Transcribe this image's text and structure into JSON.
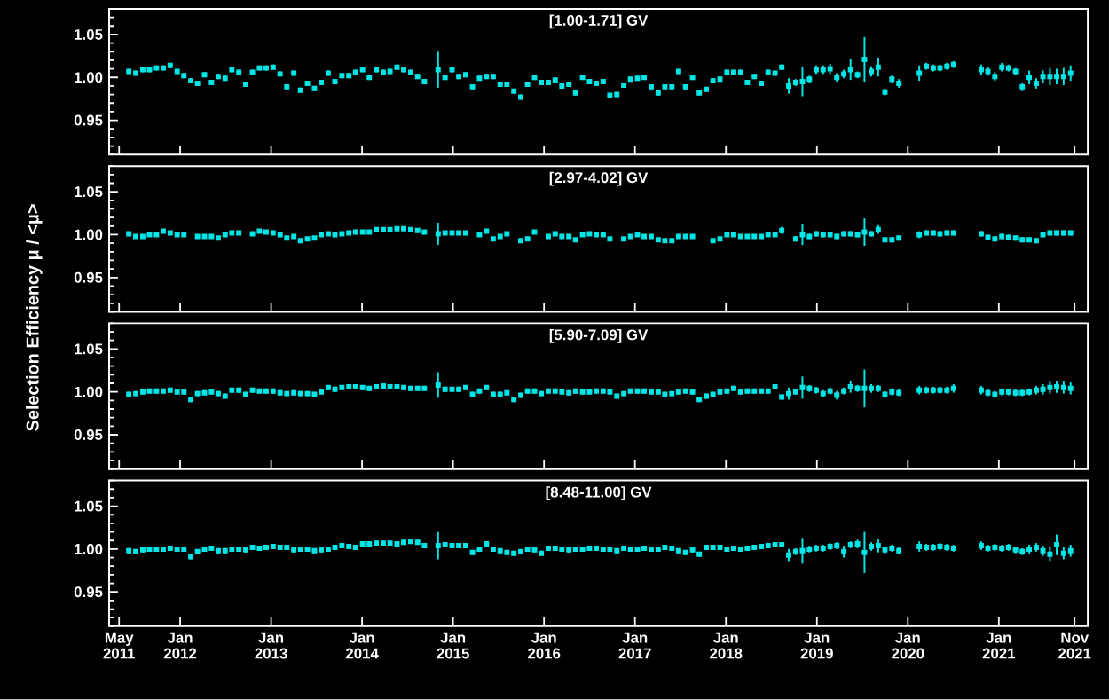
{
  "chart_data": [
    {
      "type": "scatter",
      "title": "[1.00-1.71] GV",
      "color": "#00e5e5",
      "marker": "square",
      "tick_labels": "y",
      "xlim": [
        "2011-03-22",
        "2021-12-24"
      ],
      "ylim": [
        0.91,
        1.08
      ],
      "yticks": [
        {
          "value": 0.91,
          "label": null
        },
        {
          "value": 0.92,
          "label": null
        },
        {
          "value": 0.93,
          "label": null
        },
        {
          "value": 0.94,
          "label": null
        },
        {
          "value": 0.95,
          "label": "0.95"
        },
        {
          "value": 0.96,
          "label": null
        },
        {
          "value": 0.97,
          "label": null
        },
        {
          "value": 0.98,
          "label": null
        },
        {
          "value": 0.99,
          "label": null
        },
        {
          "value": 1,
          "label": "1.00"
        },
        {
          "value": 1.01,
          "label": null
        },
        {
          "value": 1.02,
          "label": null
        },
        {
          "value": 1.03,
          "label": null
        },
        {
          "value": 1.04,
          "label": null
        },
        {
          "value": 1.05,
          "label": "1.05"
        },
        {
          "value": 1.06,
          "label": null
        },
        {
          "value": 1.07,
          "label": null
        },
        {
          "value": 1.08,
          "label": null
        }
      ],
      "xticks": [
        {
          "value": "2011-05",
          "label": null
        },
        {
          "value": "2012-01",
          "label": null
        },
        {
          "value": "2013-01",
          "label": null
        },
        {
          "value": "2014-01",
          "label": null
        },
        {
          "value": "2015-01",
          "label": null
        },
        {
          "value": "2016-01",
          "label": null
        },
        {
          "value": "2017-01",
          "label": null
        },
        {
          "value": "2018-01",
          "label": null
        },
        {
          "value": "2019-01",
          "label": null
        },
        {
          "value": "2020-01",
          "label": null
        },
        {
          "value": "2021-01",
          "label": null
        },
        {
          "value": "2021-11",
          "label": null
        }
      ],
      "x": [
        "2011-06-09",
        "2011-07-07",
        "2011-08-04",
        "2011-08-31",
        "2011-09-28",
        "2011-10-25",
        "2011-11-22",
        "2011-12-20",
        "2012-01-16",
        "2012-02-13",
        "2012-03-11",
        "2012-04-08",
        "2012-05-06",
        "2012-06-02",
        "2012-06-30",
        "2012-07-27",
        "2012-08-24",
        "2012-09-21",
        "2012-10-18",
        "2012-11-15",
        "2012-12-12",
        "2013-01-09",
        "2013-02-06",
        "2013-03-05",
        "2013-04-02",
        "2013-04-29",
        "2013-05-27",
        "2013-06-24",
        "2013-07-21",
        "2013-08-18",
        "2013-09-14",
        "2013-10-12",
        "2013-11-09",
        "2013-12-06",
        "2014-01-03",
        "2014-01-30",
        "2014-02-27",
        "2014-03-27",
        "2014-04-23",
        "2014-05-21",
        "2014-06-17",
        "2014-07-15",
        "2014-08-12",
        "2014-09-08",
        "2014-10-06",
        "2014-11-02",
        "2014-11-30",
        "2014-12-28",
        "2015-01-24",
        "2015-02-21",
        "2015-03-20",
        "2015-04-17",
        "2015-05-15",
        "2015-06-11",
        "2015-07-09",
        "2015-08-05",
        "2015-09-02",
        "2015-09-30",
        "2015-10-27",
        "2015-11-24",
        "2015-12-21",
        "2016-01-18",
        "2016-02-15",
        "2016-03-13",
        "2016-04-10",
        "2016-05-07",
        "2016-06-04",
        "2016-07-02",
        "2016-07-29",
        "2016-08-26",
        "2016-09-22",
        "2016-10-20",
        "2016-11-17",
        "2016-12-14",
        "2017-01-11",
        "2017-02-07",
        "2017-03-07",
        "2017-04-04",
        "2017-05-01",
        "2017-05-29",
        "2017-06-25",
        "2017-07-23",
        "2017-08-20",
        "2017-09-16",
        "2017-10-14",
        "2017-11-10",
        "2017-12-08",
        "2018-01-05",
        "2018-02-01",
        "2018-03-01",
        "2018-03-28",
        "2018-04-25",
        "2018-05-23",
        "2018-06-19",
        "2018-07-17",
        "2018-08-13",
        "2018-09-10",
        "2018-10-08",
        "2018-11-04",
        "2018-12-02",
        "2018-12-29",
        "2019-01-26",
        "2019-02-23",
        "2019-03-22",
        "2019-04-19",
        "2019-05-16",
        "2019-06-13",
        "2019-07-11",
        "2019-08-07",
        "2019-09-04",
        "2019-10-01",
        "2019-10-29",
        "2019-11-26",
        "2019-12-23",
        "2020-01-20",
        "2020-02-16",
        "2020-03-15",
        "2020-04-12",
        "2020-05-09",
        "2020-06-06",
        "2020-07-03",
        "2020-07-31",
        "2020-08-28",
        "2020-09-24",
        "2020-10-22",
        "2020-11-18",
        "2020-12-16",
        "2021-01-13",
        "2021-02-09",
        "2021-03-09",
        "2021-04-05",
        "2021-05-03",
        "2021-05-31",
        "2021-06-27",
        "2021-07-25",
        "2021-08-21",
        "2021-09-18",
        "2021-10-16"
      ],
      "values": [
        1.007,
        1.005,
        1.009,
        1.009,
        1.011,
        1.011,
        1.014,
        1.007,
        1.002,
        0.996,
        0.993,
        1.003,
        0.994,
        1.001,
        0.999,
        1.009,
        1.006,
        0.992,
        1.006,
        1.011,
        1.011,
        1.012,
        1.004,
        0.989,
        1.005,
        0.985,
        0.993,
        0.987,
        0.994,
        1.005,
        0.995,
        1.002,
        1.002,
        1.006,
        1.009,
        1.0,
        1.009,
        1.006,
        1.007,
        1.012,
        1.009,
        1.006,
        1.001,
        0.995,
        null,
        1.009,
        1.0,
        1.009,
        1.001,
        1.003,
        0.989,
        0.999,
        1.001,
        1.001,
        0.992,
        0.992,
        0.984,
        0.977,
        0.992,
        1.0,
        0.994,
        0.994,
        0.997,
        0.99,
        0.992,
        0.982,
        1.0,
        0.995,
        0.993,
        0.995,
        0.979,
        0.98,
        0.991,
        0.998,
        0.999,
        1.0,
        0.989,
        0.982,
        0.989,
        0.989,
        1.007,
        0.989,
        1.0,
        0.982,
        0.986,
        0.996,
        0.998,
        1.006,
        1.006,
        1.006,
        0.994,
        1.001,
        0.993,
        1.006,
        1.005,
        1.012,
        0.99,
        0.994,
        0.995,
        0.998,
        1.009,
        1.009,
        1.01,
        1.0,
        1.004,
        1.009,
        1.003,
        1.021,
        1.007,
        1.012,
        0.983,
        0.998,
        0.993,
        null,
        null,
        1.005,
        1.013,
        1.011,
        1.011,
        1.013,
        1.015,
        null,
        null,
        null,
        1.009,
        1.007,
        1.001,
        1.012,
        1.011,
        1.007,
        0.989,
        1.0,
        0.993,
        1.001,
        1.001,
        1.001,
        1.001,
        1.005
      ],
      "errors": [
        0.003,
        0.003,
        0.003,
        0.003,
        0.003,
        0.003,
        0.003,
        0.003,
        0.003,
        0.003,
        0.003,
        0.003,
        0.003,
        0.003,
        0.003,
        0.003,
        0.003,
        0.003,
        0.003,
        0.003,
        0.003,
        0.003,
        0.003,
        0.003,
        0.003,
        0.003,
        0.003,
        0.003,
        0.003,
        0.003,
        0.003,
        0.003,
        0.003,
        0.003,
        0.003,
        0.003,
        0.003,
        0.003,
        0.003,
        0.003,
        0.003,
        0.003,
        0.003,
        0.003,
        null,
        0.021,
        0.003,
        0.003,
        0.003,
        0.003,
        0.003,
        0.003,
        0.003,
        0.003,
        0.003,
        0.003,
        0.003,
        0.003,
        0.003,
        0.003,
        0.003,
        0.003,
        0.003,
        0.003,
        0.003,
        0.003,
        0.003,
        0.003,
        0.003,
        0.003,
        0.003,
        0.003,
        0.003,
        0.003,
        0.003,
        0.003,
        0.003,
        0.003,
        0.003,
        0.003,
        0.003,
        0.003,
        0.003,
        0.003,
        0.003,
        0.003,
        0.003,
        0.003,
        0.003,
        0.003,
        0.003,
        0.003,
        0.003,
        0.003,
        0.003,
        0.003,
        0.009,
        0.004,
        0.017,
        0.004,
        0.005,
        0.005,
        0.006,
        0.005,
        0.005,
        0.012,
        0.004,
        0.026,
        0.006,
        0.011,
        0.004,
        0.004,
        0.005,
        null,
        null,
        0.009,
        0.004,
        0.004,
        0.004,
        0.004,
        0.004,
        null,
        null,
        null,
        0.006,
        0.005,
        0.005,
        0.005,
        0.004,
        0.004,
        0.005,
        0.008,
        0.006,
        0.007,
        0.01,
        0.009,
        0.01,
        0.009
      ]
    },
    {
      "type": "scatter",
      "title": "[2.97-4.02] GV",
      "ylabel": "Selection Efficiency μ / <μ>",
      "color": "#00e5e5",
      "marker": "square",
      "tick_labels": "y",
      "xlim": [
        "2011-03-22",
        "2021-12-24"
      ],
      "ylim": [
        0.91,
        1.08
      ],
      "yticks": [
        {
          "value": 0.91,
          "label": null
        },
        {
          "value": 0.92,
          "label": null
        },
        {
          "value": 0.93,
          "label": null
        },
        {
          "value": 0.94,
          "label": null
        },
        {
          "value": 0.95,
          "label": "0.95"
        },
        {
          "value": 0.96,
          "label": null
        },
        {
          "value": 0.97,
          "label": null
        },
        {
          "value": 0.98,
          "label": null
        },
        {
          "value": 0.99,
          "label": null
        },
        {
          "value": 1,
          "label": "1.00"
        },
        {
          "value": 1.01,
          "label": null
        },
        {
          "value": 1.02,
          "label": null
        },
        {
          "value": 1.03,
          "label": null
        },
        {
          "value": 1.04,
          "label": null
        },
        {
          "value": 1.05,
          "label": "1.05"
        },
        {
          "value": 1.06,
          "label": null
        },
        {
          "value": 1.07,
          "label": null
        },
        {
          "value": 1.08,
          "label": null
        }
      ],
      "xticks": [
        {
          "value": "2011-05",
          "label": null
        },
        {
          "value": "2012-01",
          "label": null
        },
        {
          "value": "2013-01",
          "label": null
        },
        {
          "value": "2014-01",
          "label": null
        },
        {
          "value": "2015-01",
          "label": null
        },
        {
          "value": "2016-01",
          "label": null
        },
        {
          "value": "2017-01",
          "label": null
        },
        {
          "value": "2018-01",
          "label": null
        },
        {
          "value": "2019-01",
          "label": null
        },
        {
          "value": "2020-01",
          "label": null
        },
        {
          "value": "2021-01",
          "label": null
        },
        {
          "value": "2021-11",
          "label": null
        }
      ],
      "x": [
        "2011-06-09",
        "2011-07-07",
        "2011-08-04",
        "2011-08-31",
        "2011-09-28",
        "2011-10-25",
        "2011-11-22",
        "2011-12-20",
        "2012-01-16",
        "2012-02-13",
        "2012-03-11",
        "2012-04-08",
        "2012-05-06",
        "2012-06-02",
        "2012-06-30",
        "2012-07-27",
        "2012-08-24",
        "2012-09-21",
        "2012-10-18",
        "2012-11-15",
        "2012-12-12",
        "2013-01-09",
        "2013-02-06",
        "2013-03-05",
        "2013-04-02",
        "2013-04-29",
        "2013-05-27",
        "2013-06-24",
        "2013-07-21",
        "2013-08-18",
        "2013-09-14",
        "2013-10-12",
        "2013-11-09",
        "2013-12-06",
        "2014-01-03",
        "2014-01-30",
        "2014-02-27",
        "2014-03-27",
        "2014-04-23",
        "2014-05-21",
        "2014-06-17",
        "2014-07-15",
        "2014-08-12",
        "2014-09-08",
        "2014-10-06",
        "2014-11-02",
        "2014-11-30",
        "2014-12-28",
        "2015-01-24",
        "2015-02-21",
        "2015-03-20",
        "2015-04-17",
        "2015-05-15",
        "2015-06-11",
        "2015-07-09",
        "2015-08-05",
        "2015-09-02",
        "2015-09-30",
        "2015-10-27",
        "2015-11-24",
        "2015-12-21",
        "2016-01-18",
        "2016-02-15",
        "2016-03-13",
        "2016-04-10",
        "2016-05-07",
        "2016-06-04",
        "2016-07-02",
        "2016-07-29",
        "2016-08-26",
        "2016-09-22",
        "2016-10-20",
        "2016-11-17",
        "2016-12-14",
        "2017-01-11",
        "2017-02-07",
        "2017-03-07",
        "2017-04-04",
        "2017-05-01",
        "2017-05-29",
        "2017-06-25",
        "2017-07-23",
        "2017-08-20",
        "2017-09-16",
        "2017-10-14",
        "2017-11-10",
        "2017-12-08",
        "2018-01-05",
        "2018-02-01",
        "2018-03-01",
        "2018-03-28",
        "2018-04-25",
        "2018-05-23",
        "2018-06-19",
        "2018-07-17",
        "2018-08-13",
        "2018-09-10",
        "2018-10-08",
        "2018-11-04",
        "2018-12-02",
        "2018-12-29",
        "2019-01-26",
        "2019-02-23",
        "2019-03-22",
        "2019-04-19",
        "2019-05-16",
        "2019-06-13",
        "2019-07-11",
        "2019-08-07",
        "2019-09-04",
        "2019-10-01",
        "2019-10-29",
        "2019-11-26",
        "2019-12-23",
        "2020-01-20",
        "2020-02-16",
        "2020-03-15",
        "2020-04-12",
        "2020-05-09",
        "2020-06-06",
        "2020-07-03",
        "2020-07-31",
        "2020-08-28",
        "2020-09-24",
        "2020-10-22",
        "2020-11-18",
        "2020-12-16",
        "2021-01-13",
        "2021-02-09",
        "2021-03-09",
        "2021-04-05",
        "2021-05-03",
        "2021-05-31",
        "2021-06-27",
        "2021-07-25",
        "2021-08-21",
        "2021-09-18",
        "2021-10-16"
      ],
      "values": [
        1.001,
        0.998,
        0.998,
        1.0,
        1.0,
        1.004,
        1.002,
        1.0,
        1.0,
        null,
        0.998,
        0.998,
        0.998,
        0.996,
        1.0,
        1.002,
        1.002,
        null,
        1.001,
        1.004,
        1.003,
        1.002,
        1.0,
        0.996,
        0.998,
        0.993,
        0.995,
        0.996,
        1.0,
        1.001,
        1.0,
        1.001,
        1.002,
        1.003,
        1.003,
        1.003,
        1.006,
        1.006,
        1.006,
        1.007,
        1.007,
        1.006,
        1.005,
        1.003,
        null,
        1.001,
        1.002,
        1.002,
        1.002,
        1.002,
        null,
        1.0,
        1.004,
        0.995,
        0.998,
        1.001,
        null,
        0.993,
        0.995,
        1.003,
        null,
        0.998,
        1.001,
        0.998,
        0.998,
        0.994,
        1.0,
        1.001,
        1.0,
        1.0,
        0.995,
        null,
        0.995,
        0.998,
        1.0,
        0.998,
        0.998,
        0.994,
        0.993,
        0.993,
        0.998,
        0.998,
        0.998,
        null,
        null,
        0.993,
        0.995,
        1.0,
        1.0,
        0.998,
        0.998,
        0.998,
        0.998,
        1.0,
        1.0,
        1.005,
        null,
        0.995,
        1.0,
        0.998,
        1.001,
        1.0,
        1.0,
        0.998,
        1.001,
        1.001,
        1.0,
        1.003,
        1.001,
        1.006,
        0.994,
        0.994,
        0.996,
        null,
        null,
        1.0,
        1.002,
        1.002,
        1.001,
        1.002,
        1.002,
        null,
        null,
        null,
        1.001,
        0.997,
        0.995,
        0.998,
        0.997,
        0.996,
        0.994,
        0.994,
        0.993,
        1.0,
        1.002,
        1.002,
        1.002,
        1.002
      ],
      "errors": [
        0.002,
        0.002,
        0.002,
        0.002,
        0.002,
        0.002,
        0.002,
        0.002,
        0.002,
        null,
        0.002,
        0.002,
        0.002,
        0.002,
        0.002,
        0.002,
        0.002,
        null,
        0.002,
        0.002,
        0.002,
        0.002,
        0.002,
        0.002,
        0.002,
        0.002,
        0.002,
        0.002,
        0.002,
        0.002,
        0.002,
        0.002,
        0.002,
        0.002,
        0.002,
        0.002,
        0.002,
        0.002,
        0.002,
        0.002,
        0.002,
        0.002,
        0.002,
        0.002,
        null,
        0.013,
        0.002,
        0.002,
        0.002,
        0.002,
        null,
        0.002,
        0.002,
        0.002,
        0.002,
        0.002,
        null,
        0.002,
        0.002,
        0.002,
        null,
        0.002,
        0.002,
        0.002,
        0.002,
        0.002,
        0.002,
        0.002,
        0.002,
        0.002,
        0.002,
        null,
        0.002,
        0.002,
        0.002,
        0.002,
        0.002,
        0.002,
        0.002,
        0.002,
        0.002,
        0.002,
        0.002,
        null,
        null,
        0.002,
        0.002,
        0.002,
        0.002,
        0.002,
        0.002,
        0.002,
        0.002,
        0.002,
        0.002,
        0.004,
        null,
        0.003,
        0.012,
        0.003,
        0.003,
        0.003,
        0.003,
        0.003,
        0.003,
        0.003,
        0.003,
        0.016,
        0.003,
        0.005,
        0.003,
        0.003,
        0.003,
        null,
        null,
        0.004,
        0.003,
        0.003,
        0.003,
        0.003,
        0.003,
        null,
        null,
        null,
        0.003,
        0.003,
        0.003,
        0.003,
        0.003,
        0.003,
        0.003,
        0.003,
        0.003,
        0.003,
        0.003,
        0.003,
        0.003,
        0.003
      ]
    },
    {
      "type": "scatter",
      "title": "[5.90-7.09] GV",
      "color": "#00e5e5",
      "marker": "square",
      "tick_labels": "y",
      "xlim": [
        "2011-03-22",
        "2021-12-24"
      ],
      "ylim": [
        0.91,
        1.08
      ],
      "yticks": [
        {
          "value": 0.91,
          "label": null
        },
        {
          "value": 0.92,
          "label": null
        },
        {
          "value": 0.93,
          "label": null
        },
        {
          "value": 0.94,
          "label": null
        },
        {
          "value": 0.95,
          "label": "0.95"
        },
        {
          "value": 0.96,
          "label": null
        },
        {
          "value": 0.97,
          "label": null
        },
        {
          "value": 0.98,
          "label": null
        },
        {
          "value": 0.99,
          "label": null
        },
        {
          "value": 1,
          "label": "1.00"
        },
        {
          "value": 1.01,
          "label": null
        },
        {
          "value": 1.02,
          "label": null
        },
        {
          "value": 1.03,
          "label": null
        },
        {
          "value": 1.04,
          "label": null
        },
        {
          "value": 1.05,
          "label": "1.05"
        },
        {
          "value": 1.06,
          "label": null
        },
        {
          "value": 1.07,
          "label": null
        },
        {
          "value": 1.08,
          "label": null
        }
      ],
      "xticks": [
        {
          "value": "2011-05",
          "label": null
        },
        {
          "value": "2012-01",
          "label": null
        },
        {
          "value": "2013-01",
          "label": null
        },
        {
          "value": "2014-01",
          "label": null
        },
        {
          "value": "2015-01",
          "label": null
        },
        {
          "value": "2016-01",
          "label": null
        },
        {
          "value": "2017-01",
          "label": null
        },
        {
          "value": "2018-01",
          "label": null
        },
        {
          "value": "2019-01",
          "label": null
        },
        {
          "value": "2020-01",
          "label": null
        },
        {
          "value": "2021-01",
          "label": null
        },
        {
          "value": "2021-11",
          "label": null
        }
      ],
      "x": [
        "2011-06-09",
        "2011-07-07",
        "2011-08-04",
        "2011-08-31",
        "2011-09-28",
        "2011-10-25",
        "2011-11-22",
        "2011-12-20",
        "2012-01-16",
        "2012-02-13",
        "2012-03-11",
        "2012-04-08",
        "2012-05-06",
        "2012-06-02",
        "2012-06-30",
        "2012-07-27",
        "2012-08-24",
        "2012-09-21",
        "2012-10-18",
        "2012-11-15",
        "2012-12-12",
        "2013-01-09",
        "2013-02-06",
        "2013-03-05",
        "2013-04-02",
        "2013-04-29",
        "2013-05-27",
        "2013-06-24",
        "2013-07-21",
        "2013-08-18",
        "2013-09-14",
        "2013-10-12",
        "2013-11-09",
        "2013-12-06",
        "2014-01-03",
        "2014-01-30",
        "2014-02-27",
        "2014-03-27",
        "2014-04-23",
        "2014-05-21",
        "2014-06-17",
        "2014-07-15",
        "2014-08-12",
        "2014-09-08",
        "2014-10-06",
        "2014-11-02",
        "2014-11-30",
        "2014-12-28",
        "2015-01-24",
        "2015-02-21",
        "2015-03-20",
        "2015-04-17",
        "2015-05-15",
        "2015-06-11",
        "2015-07-09",
        "2015-08-05",
        "2015-09-02",
        "2015-09-30",
        "2015-10-27",
        "2015-11-24",
        "2015-12-21",
        "2016-01-18",
        "2016-02-15",
        "2016-03-13",
        "2016-04-10",
        "2016-05-07",
        "2016-06-04",
        "2016-07-02",
        "2016-07-29",
        "2016-08-26",
        "2016-09-22",
        "2016-10-20",
        "2016-11-17",
        "2016-12-14",
        "2017-01-11",
        "2017-02-07",
        "2017-03-07",
        "2017-04-04",
        "2017-05-01",
        "2017-05-29",
        "2017-06-25",
        "2017-07-23",
        "2017-08-20",
        "2017-09-16",
        "2017-10-14",
        "2017-11-10",
        "2017-12-08",
        "2018-01-05",
        "2018-02-01",
        "2018-03-01",
        "2018-03-28",
        "2018-04-25",
        "2018-05-23",
        "2018-06-19",
        "2018-07-17",
        "2018-08-13",
        "2018-09-10",
        "2018-10-08",
        "2018-11-04",
        "2018-12-02",
        "2018-12-29",
        "2019-01-26",
        "2019-02-23",
        "2019-03-22",
        "2019-04-19",
        "2019-05-16",
        "2019-06-13",
        "2019-07-11",
        "2019-08-07",
        "2019-09-04",
        "2019-10-01",
        "2019-10-29",
        "2019-11-26",
        "2019-12-23",
        "2020-01-20",
        "2020-02-16",
        "2020-03-15",
        "2020-04-12",
        "2020-05-09",
        "2020-06-06",
        "2020-07-03",
        "2020-07-31",
        "2020-08-28",
        "2020-09-24",
        "2020-10-22",
        "2020-11-18",
        "2020-12-16",
        "2021-01-13",
        "2021-02-09",
        "2021-03-09",
        "2021-04-05",
        "2021-05-03",
        "2021-05-31",
        "2021-06-27",
        "2021-07-25",
        "2021-08-21",
        "2021-09-18",
        "2021-10-16"
      ],
      "values": [
        0.997,
        0.998,
        1.0,
        1.001,
        1.001,
        1.001,
        1.002,
        1.0,
        1.0,
        0.991,
        0.998,
        0.999,
        1.0,
        0.998,
        0.995,
        1.002,
        1.002,
        0.997,
        1.002,
        1.001,
        1.001,
        1.001,
        0.999,
        0.998,
        0.999,
        0.998,
        0.998,
        0.997,
        1.0,
        1.005,
        1.003,
        1.005,
        1.006,
        1.006,
        1.005,
        1.004,
        1.006,
        1.007,
        1.006,
        1.006,
        1.005,
        1.004,
        1.004,
        1.004,
        null,
        1.008,
        1.003,
        1.003,
        1.003,
        1.005,
        0.997,
        1.001,
        1.005,
        0.997,
        0.997,
        0.999,
        0.991,
        0.996,
        1.001,
        1.001,
        0.998,
        1.001,
        1.001,
        1.0,
        0.999,
        1.001,
        1.0,
        1.0,
        1.001,
        1.001,
        1.0,
        0.995,
        0.998,
        1.001,
        1.001,
        1.001,
        1.0,
        1.0,
        0.997,
        0.998,
        1.0,
        1.001,
        1.0,
        0.991,
        0.995,
        0.997,
        1.0,
        1.001,
        1.004,
        1.0,
        1.001,
        1.001,
        1.001,
        1.001,
        1.006,
        0.994,
        0.998,
        1.0,
        1.005,
        1.004,
        1.002,
        0.998,
        1.001,
        0.996,
        1.001,
        1.006,
        1.004,
        1.004,
        1.004,
        1.004,
        0.997,
        1.0,
        0.999,
        null,
        null,
        1.002,
        1.002,
        1.002,
        1.002,
        1.002,
        1.004,
        null,
        null,
        null,
        1.002,
        0.999,
        0.997,
        1.0,
        1.0,
        0.999,
        0.999,
        1.0,
        1.002,
        1.003,
        1.005,
        1.006,
        1.005,
        1.004
      ],
      "errors": [
        0.003,
        0.003,
        0.003,
        0.003,
        0.003,
        0.003,
        0.003,
        0.003,
        0.003,
        0.003,
        0.003,
        0.003,
        0.003,
        0.003,
        0.003,
        0.003,
        0.003,
        0.003,
        0.003,
        0.003,
        0.003,
        0.003,
        0.003,
        0.003,
        0.003,
        0.003,
        0.003,
        0.003,
        0.003,
        0.003,
        0.003,
        0.003,
        0.003,
        0.003,
        0.003,
        0.003,
        0.003,
        0.003,
        0.003,
        0.003,
        0.003,
        0.003,
        0.003,
        0.003,
        null,
        0.015,
        0.003,
        0.003,
        0.003,
        0.003,
        0.003,
        0.003,
        0.003,
        0.003,
        0.003,
        0.003,
        0.003,
        0.003,
        0.003,
        0.003,
        0.003,
        0.003,
        0.003,
        0.003,
        0.003,
        0.003,
        0.003,
        0.003,
        0.003,
        0.003,
        0.003,
        0.003,
        0.003,
        0.003,
        0.003,
        0.003,
        0.003,
        0.003,
        0.003,
        0.003,
        0.003,
        0.003,
        0.003,
        0.003,
        0.003,
        0.003,
        0.003,
        0.003,
        0.003,
        0.003,
        0.003,
        0.003,
        0.003,
        0.003,
        0.003,
        0.003,
        0.007,
        0.003,
        0.013,
        0.004,
        0.004,
        0.004,
        0.004,
        0.005,
        0.004,
        0.007,
        0.004,
        0.022,
        0.005,
        0.004,
        0.004,
        0.004,
        0.004,
        null,
        null,
        0.005,
        0.004,
        0.004,
        0.004,
        0.004,
        0.005,
        null,
        null,
        null,
        0.005,
        0.004,
        0.004,
        0.004,
        0.004,
        0.004,
        0.004,
        0.004,
        0.005,
        0.006,
        0.007,
        0.007,
        0.007,
        0.007
      ]
    },
    {
      "type": "scatter",
      "title": "[8.48-11.00] GV",
      "color": "#00e5e5",
      "marker": "square",
      "xlim": [
        "2011-03-22",
        "2021-12-24"
      ],
      "ylim": [
        0.91,
        1.08
      ],
      "yticks": [
        {
          "value": 0.91,
          "label": null
        },
        {
          "value": 0.92,
          "label": null
        },
        {
          "value": 0.93,
          "label": null
        },
        {
          "value": 0.94,
          "label": null
        },
        {
          "value": 0.95,
          "label": "0.95"
        },
        {
          "value": 0.96,
          "label": null
        },
        {
          "value": 0.97,
          "label": null
        },
        {
          "value": 0.98,
          "label": null
        },
        {
          "value": 0.99,
          "label": null
        },
        {
          "value": 1,
          "label": "1.00"
        },
        {
          "value": 1.01,
          "label": null
        },
        {
          "value": 1.02,
          "label": null
        },
        {
          "value": 1.03,
          "label": null
        },
        {
          "value": 1.04,
          "label": null
        },
        {
          "value": 1.05,
          "label": "1.05"
        },
        {
          "value": 1.06,
          "label": null
        },
        {
          "value": 1.07,
          "label": null
        },
        {
          "value": 1.08,
          "label": null
        }
      ],
      "xticks": [
        {
          "value": "2011-05",
          "label": "May 2011"
        },
        {
          "value": "2012-01",
          "label": "Jan 2012"
        },
        {
          "value": "2013-01",
          "label": "Jan 2013"
        },
        {
          "value": "2014-01",
          "label": "Jan 2014"
        },
        {
          "value": "2015-01",
          "label": "Jan 2015"
        },
        {
          "value": "2016-01",
          "label": "Jan 2016"
        },
        {
          "value": "2017-01",
          "label": "Jan 2017"
        },
        {
          "value": "2018-01",
          "label": "Jan 2018"
        },
        {
          "value": "2019-01",
          "label": "Jan 2019"
        },
        {
          "value": "2020-01",
          "label": "Jan 2020"
        },
        {
          "value": "2021-01",
          "label": "Jan 2021"
        },
        {
          "value": "2021-11",
          "label": "Nov 2021"
        }
      ],
      "x": [
        "2011-06-09",
        "2011-07-07",
        "2011-08-04",
        "2011-08-31",
        "2011-09-28",
        "2011-10-25",
        "2011-11-22",
        "2011-12-20",
        "2012-01-16",
        "2012-02-13",
        "2012-03-11",
        "2012-04-08",
        "2012-05-06",
        "2012-06-02",
        "2012-06-30",
        "2012-07-27",
        "2012-08-24",
        "2012-09-21",
        "2012-10-18",
        "2012-11-15",
        "2012-12-12",
        "2013-01-09",
        "2013-02-06",
        "2013-03-05",
        "2013-04-02",
        "2013-04-29",
        "2013-05-27",
        "2013-06-24",
        "2013-07-21",
        "2013-08-18",
        "2013-09-14",
        "2013-10-12",
        "2013-11-09",
        "2013-12-06",
        "2014-01-03",
        "2014-01-30",
        "2014-02-27",
        "2014-03-27",
        "2014-04-23",
        "2014-05-21",
        "2014-06-17",
        "2014-07-15",
        "2014-08-12",
        "2014-09-08",
        "2014-10-06",
        "2014-11-02",
        "2014-11-30",
        "2014-12-28",
        "2015-01-24",
        "2015-02-21",
        "2015-03-20",
        "2015-04-17",
        "2015-05-15",
        "2015-06-11",
        "2015-07-09",
        "2015-08-05",
        "2015-09-02",
        "2015-09-30",
        "2015-10-27",
        "2015-11-24",
        "2015-12-21",
        "2016-01-18",
        "2016-02-15",
        "2016-03-13",
        "2016-04-10",
        "2016-05-07",
        "2016-06-04",
        "2016-07-02",
        "2016-07-29",
        "2016-08-26",
        "2016-09-22",
        "2016-10-20",
        "2016-11-17",
        "2016-12-14",
        "2017-01-11",
        "2017-02-07",
        "2017-03-07",
        "2017-04-04",
        "2017-05-01",
        "2017-05-29",
        "2017-06-25",
        "2017-07-23",
        "2017-08-20",
        "2017-09-16",
        "2017-10-14",
        "2017-11-10",
        "2017-12-08",
        "2018-01-05",
        "2018-02-01",
        "2018-03-01",
        "2018-03-28",
        "2018-04-25",
        "2018-05-23",
        "2018-06-19",
        "2018-07-17",
        "2018-08-13",
        "2018-09-10",
        "2018-10-08",
        "2018-11-04",
        "2018-12-02",
        "2018-12-29",
        "2019-01-26",
        "2019-02-23",
        "2019-03-22",
        "2019-04-19",
        "2019-05-16",
        "2019-06-13",
        "2019-07-11",
        "2019-08-07",
        "2019-09-04",
        "2019-10-01",
        "2019-10-29",
        "2019-11-26",
        "2019-12-23",
        "2020-01-20",
        "2020-02-16",
        "2020-03-15",
        "2020-04-12",
        "2020-05-09",
        "2020-06-06",
        "2020-07-03",
        "2020-07-31",
        "2020-08-28",
        "2020-09-24",
        "2020-10-22",
        "2020-11-18",
        "2020-12-16",
        "2021-01-13",
        "2021-02-09",
        "2021-03-09",
        "2021-04-05",
        "2021-05-03",
        "2021-05-31",
        "2021-06-27",
        "2021-07-25",
        "2021-08-21",
        "2021-09-18",
        "2021-10-16"
      ],
      "values": [
        0.998,
        0.997,
        0.999,
        1.0,
        1.0,
        1.0,
        1.001,
        1.0,
        1.0,
        0.991,
        0.997,
        1.0,
        1.001,
        0.998,
        0.998,
        1.0,
        1.0,
        0.999,
        1.002,
        1.001,
        1.002,
        1.003,
        1.002,
        1.002,
        0.999,
        1.0,
        1.0,
        0.998,
        0.999,
        1.0,
        1.002,
        1.004,
        1.003,
        1.002,
        1.006,
        1.006,
        1.007,
        1.007,
        1.007,
        1.006,
        1.008,
        1.009,
        1.008,
        1.004,
        null,
        1.004,
        1.005,
        1.004,
        1.004,
        1.004,
        0.996,
        1.0,
        1.006,
        1.0,
        0.998,
        0.996,
        0.995,
        0.997,
        1.0,
        0.999,
        0.995,
        1.001,
        1.001,
        1.0,
        0.999,
        1.0,
        1.0,
        1.001,
        1.001,
        1.0,
        1.0,
        0.998,
        1.001,
        1.0,
        1.0,
        1.001,
        1.0,
        1.0,
        1.002,
        1.001,
        0.998,
        0.996,
        0.999,
        0.994,
        1.002,
        1.002,
        1.002,
        1.0,
        1.001,
        1.0,
        1.001,
        1.002,
        1.003,
        1.004,
        1.005,
        1.005,
        0.993,
        0.997,
        0.998,
        1.0,
        1.001,
        1.001,
        1.003,
        1.004,
        0.997,
        1.005,
        1.006,
        0.996,
        1.003,
        1.004,
        0.999,
        1.001,
        0.998,
        null,
        null,
        1.003,
        1.002,
        1.002,
        1.003,
        1.002,
        1.001,
        null,
        null,
        null,
        1.004,
        1.001,
        1.002,
        1.001,
        1.002,
        0.999,
        0.997,
        1.0,
        1.002,
        0.998,
        0.994,
        1.005,
        0.995,
        0.998
      ],
      "errors": [
        0.003,
        0.003,
        0.003,
        0.003,
        0.003,
        0.003,
        0.003,
        0.003,
        0.003,
        0.003,
        0.003,
        0.003,
        0.003,
        0.003,
        0.003,
        0.003,
        0.003,
        0.003,
        0.003,
        0.003,
        0.003,
        0.003,
        0.003,
        0.003,
        0.003,
        0.003,
        0.003,
        0.003,
        0.003,
        0.003,
        0.003,
        0.003,
        0.003,
        0.003,
        0.003,
        0.003,
        0.003,
        0.003,
        0.003,
        0.003,
        0.003,
        0.003,
        0.003,
        0.003,
        null,
        0.016,
        0.003,
        0.003,
        0.003,
        0.003,
        0.003,
        0.003,
        0.003,
        0.003,
        0.003,
        0.003,
        0.003,
        0.003,
        0.003,
        0.003,
        0.003,
        0.003,
        0.003,
        0.003,
        0.003,
        0.003,
        0.003,
        0.003,
        0.003,
        0.003,
        0.003,
        0.003,
        0.003,
        0.003,
        0.003,
        0.003,
        0.003,
        0.003,
        0.003,
        0.003,
        0.003,
        0.003,
        0.003,
        0.003,
        0.003,
        0.003,
        0.003,
        0.003,
        0.003,
        0.003,
        0.003,
        0.003,
        0.003,
        0.003,
        0.003,
        0.003,
        0.007,
        0.004,
        0.015,
        0.004,
        0.004,
        0.004,
        0.004,
        0.004,
        0.007,
        0.004,
        0.005,
        0.024,
        0.005,
        0.008,
        0.004,
        0.004,
        0.004,
        null,
        null,
        0.006,
        0.004,
        0.004,
        0.004,
        0.004,
        0.004,
        null,
        null,
        null,
        0.005,
        0.004,
        0.004,
        0.004,
        0.004,
        0.004,
        0.004,
        0.005,
        0.005,
        0.006,
        0.008,
        0.012,
        0.007,
        0.007
      ]
    }
  ]
}
